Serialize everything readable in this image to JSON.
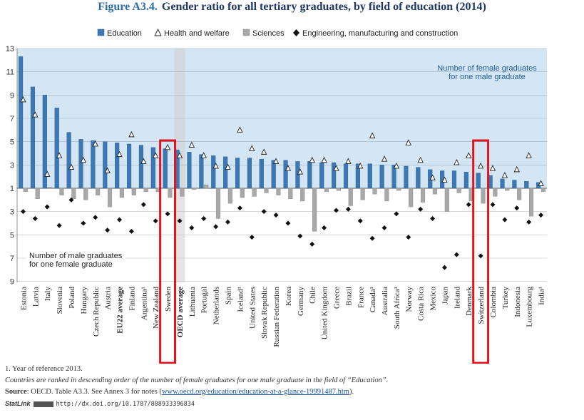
{
  "chart_data": {
    "type": "bar",
    "figure_label": "Figure A3.4.",
    "title": "Gender ratio for all tertiary graduates, by field of education (2014)",
    "legend": [
      "Education",
      "Health and welfare",
      "Sciences",
      "Engineering, manufacturing and construction"
    ],
    "upper_annotation": [
      "Number of female graduates",
      "for one male graduate"
    ],
    "lower_annotation": [
      "Number of male graduates",
      "for one female graduate"
    ],
    "y_ticks_upper": [
      "13",
      "11",
      "9",
      "7",
      "5",
      "3",
      "1"
    ],
    "y_ticks_lower": [
      "3",
      "5",
      "7",
      "9"
    ],
    "ylim": [
      -9,
      13
    ],
    "categories": [
      "Estonia",
      "Latvia",
      "Italy",
      "Slovenia",
      "Poland",
      "Hungary",
      "Czech Republic",
      "Austria",
      "EU22 average",
      "Finland",
      "Argentina¹",
      "New Zealand",
      "Sweden",
      "OECD average",
      "Lithuania",
      "Portugal",
      "Netherlands",
      "Spain",
      "Iceland¹",
      "United States",
      "Slovak Republic",
      "Russian Federation",
      "Korea",
      "Germany",
      "Chile",
      "United Kingdom",
      "Greece",
      "Brazil",
      "France",
      "Canada¹",
      "Australia",
      "South Africa¹",
      "Norway",
      "Costa Rica",
      "Mexico",
      "Japan",
      "Ireland",
      "Denmark",
      "Switzerland",
      "Colombia",
      "Turkey",
      "Indonesia",
      "Luxembourg",
      "India¹"
    ],
    "bold_categories": [
      "EU22 average",
      "OECD average"
    ],
    "highlighted_categories": [
      "Sweden",
      "Switzerland"
    ],
    "series": [
      {
        "name": "Education",
        "values": [
          12.3,
          9.7,
          9.0,
          7.9,
          5.8,
          5.2,
          5.1,
          5.0,
          4.9,
          4.8,
          4.7,
          4.5,
          4.4,
          4.3,
          4.1,
          3.9,
          3.8,
          3.7,
          3.6,
          3.6,
          3.5,
          3.4,
          3.4,
          3.3,
          3.3,
          3.2,
          3.2,
          3.1,
          3.1,
          3.1,
          3.0,
          3.0,
          2.9,
          2.8,
          2.6,
          2.5,
          2.5,
          2.4,
          2.3,
          2.1,
          1.8,
          1.7,
          1.6,
          1.5
        ]
      },
      {
        "name": "Health and welfare",
        "values": [
          8.6,
          7.3,
          2.2,
          3.8,
          2.8,
          3.4,
          4.8,
          2.5,
          3.9,
          5.6,
          3.3,
          3.8,
          4.5,
          3.8,
          4.7,
          3.8,
          2.9,
          2.8,
          6.0,
          4.4,
          4.1,
          3.3,
          2.7,
          2.4,
          3.4,
          3.4,
          2.7,
          3.3,
          2.9,
          5.5,
          3.5,
          2.9,
          4.9,
          3.4,
          1.9,
          1.7,
          3.2,
          3.8,
          2.9,
          2.7,
          2.1,
          2.6,
          3.8,
          1.4
        ]
      },
      {
        "name": "Sciences",
        "values": [
          -1.3,
          -1.9,
          1.1,
          -1.6,
          -1.9,
          -2.0,
          -1.6,
          -2.6,
          -1.8,
          -1.6,
          -1.3,
          -1.3,
          -1.8,
          -1.7,
          -1.1,
          1.3,
          -3.6,
          -2.3,
          -1.8,
          -1.7,
          -1.4,
          -1.6,
          -1.9,
          -2.1,
          -4.7,
          -1.3,
          -1.2,
          -2.5,
          -2.0,
          -1.5,
          -2.1,
          -1.2,
          -2.6,
          -2.2,
          -1.5,
          -3.0,
          -1.4,
          -2.1,
          -2.3,
          -1.7,
          -1.2,
          -2.0,
          -3.4,
          -1.3
        ]
      },
      {
        "name": "Engineering, manufacturing and construction",
        "values": [
          -3.0,
          -3.6,
          -2.6,
          -4.2,
          -2.0,
          -4.0,
          -3.5,
          -4.6,
          -3.7,
          -4.7,
          -2.4,
          -3.8,
          -3.2,
          -3.8,
          -4.4,
          -3.6,
          -4.3,
          -3.9,
          -2.7,
          -5.2,
          -3.0,
          -3.3,
          -4.0,
          -5.1,
          -5.8,
          -4.4,
          -2.9,
          -2.8,
          -3.8,
          -5.3,
          -4.4,
          -3.2,
          -5.2,
          -2.8,
          -3.6,
          -7.8,
          -6.7,
          -2.4,
          -6.8,
          -2.4,
          -3.7,
          -2.7,
          -3.9,
          -3.3
        ]
      }
    ]
  },
  "footnotes": {
    "note1": "1. Year of reference 2013.",
    "note2": "Countries are ranked in descending order of the number of female graduates for one male graduate in the field of “Education”.",
    "source_label": "Source",
    "source_text": ": OECD. Table A3.3. See Annex 3 for notes (",
    "source_link": "www.oecd.org/education/education-at-a-glance-19991487.htm",
    "source_end": ").",
    "statlink_label": "StatLink",
    "statlink_url": "http://dx.doi.org/10.1787/888933396834"
  },
  "colors": {
    "education": "#3c78b4",
    "sciences": "#a8a8a8",
    "upper_band": "#d4e6f4",
    "highlight": "#e0141c",
    "title": "#1f3864"
  }
}
